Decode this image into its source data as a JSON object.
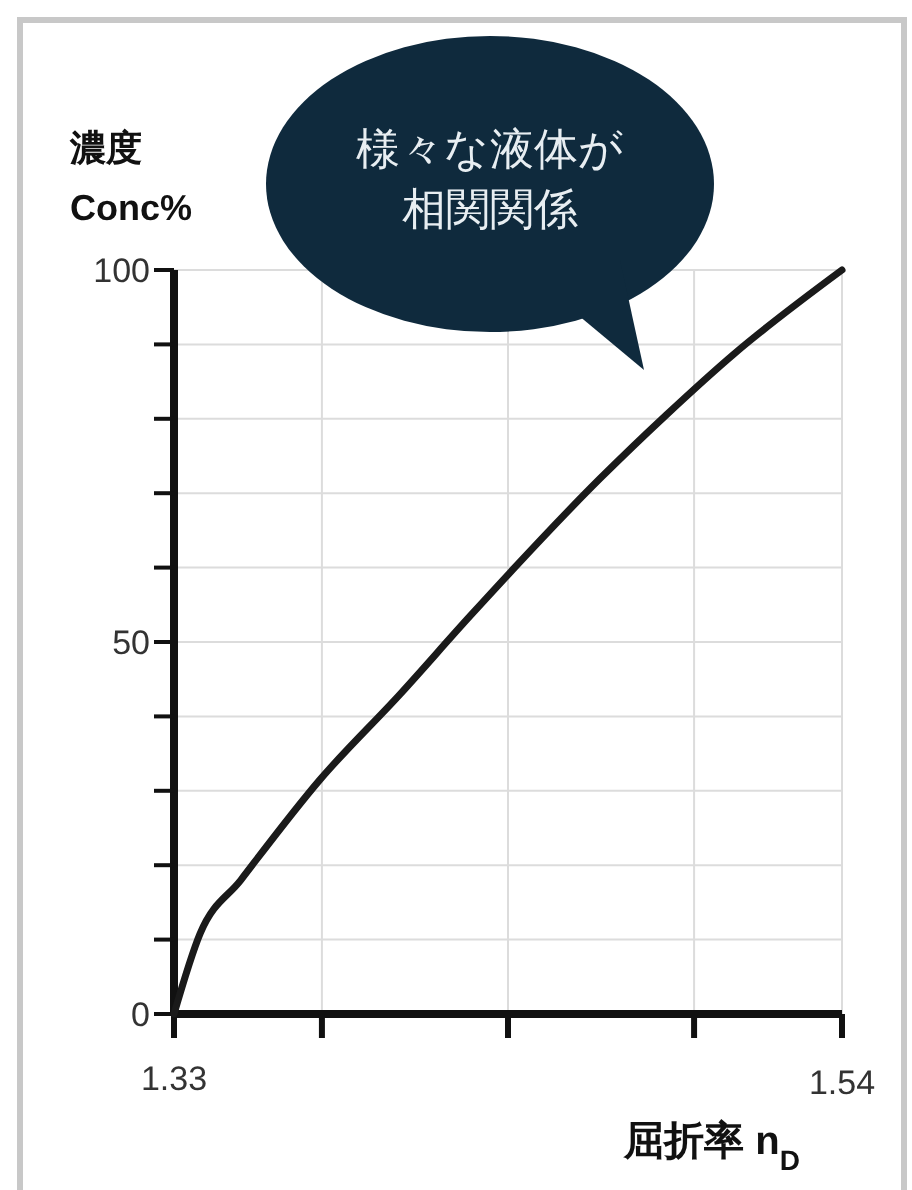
{
  "chart_data": {
    "type": "line",
    "ylabel": "濃度\nConc%",
    "xlabel": "屈折率 n$_{D}$",
    "annotations": [
      "様々な液体が相関関係"
    ],
    "x": [
      1.33,
      1.3382,
      1.351,
      1.3759,
      1.4011,
      1.4231,
      1.464,
      1.4847,
      1.506,
      1.54
    ],
    "series": [
      {
        "color": "#1a1a1a",
        "values": [
          0,
          10.8,
          18,
          31.5,
          43,
          53.5,
          72,
          80.5,
          88.7,
          100
        ]
      }
    ],
    "xlim": [
      1.33,
      1.54
    ],
    "xticks": [
      1.33,
      {
        "value": 1.3765,
        "label": null
      },
      {
        "value": 1.435,
        "label": null
      },
      {
        "value": 1.4935,
        "label": null
      },
      1.54
    ],
    "ylim": [
      0,
      100
    ],
    "yticks": [
      0,
      {
        "value": 10,
        "label": null
      },
      {
        "value": 20,
        "label": null
      },
      {
        "value": 30,
        "label": null
      },
      {
        "value": 40,
        "label": null
      },
      50,
      {
        "value": 60,
        "label": null
      },
      {
        "value": 70,
        "label": null
      },
      {
        "value": 80,
        "label": null
      },
      {
        "value": 90,
        "label": null
      },
      100
    ],
    "grid": true,
    "marker": "none",
    "line_style": "solid"
  }
}
